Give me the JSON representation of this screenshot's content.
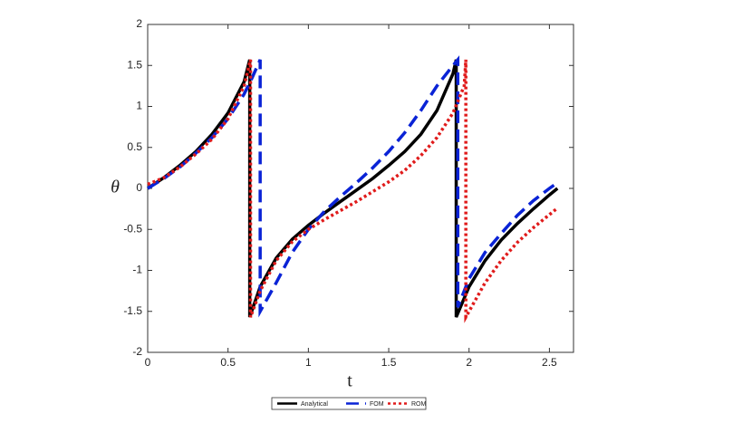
{
  "chart_data": {
    "type": "line",
    "xlabel": "t",
    "ylabel": "θ",
    "xlim": [
      0,
      2.65
    ],
    "ylim": [
      -2,
      2
    ],
    "xticks": [
      0,
      0.5,
      1,
      1.5,
      2,
      2.5
    ],
    "yticks": [
      -2,
      -1.5,
      -1,
      -0.5,
      0,
      0.5,
      1,
      1.5,
      2
    ],
    "legend": "bottom",
    "series": [
      {
        "name": "Analytical",
        "color": "#000000",
        "dash": "solid",
        "x": [
          0,
          0.1,
          0.2,
          0.3,
          0.4,
          0.5,
          0.6,
          0.635,
          0.635,
          0.7,
          0.8,
          0.9,
          1.0,
          1.1,
          1.2,
          1.3,
          1.4,
          1.5,
          1.6,
          1.7,
          1.8,
          1.9,
          1.92,
          1.92,
          2.0,
          2.1,
          2.2,
          2.3,
          2.4,
          2.5,
          2.55
        ],
        "values": [
          0,
          0.13,
          0.28,
          0.45,
          0.66,
          0.92,
          1.3,
          1.57,
          -1.57,
          -1.2,
          -0.85,
          -0.62,
          -0.45,
          -0.3,
          -0.16,
          -0.02,
          0.12,
          0.28,
          0.45,
          0.66,
          0.95,
          1.4,
          1.57,
          -1.57,
          -1.2,
          -0.88,
          -0.63,
          -0.43,
          -0.25,
          -0.08,
          0
        ]
      },
      {
        "name": "FOM",
        "color": "#0a23d6",
        "dash": "dashed",
        "x": [
          0,
          0.1,
          0.2,
          0.3,
          0.4,
          0.5,
          0.6,
          0.65,
          0.7,
          0.7,
          0.8,
          0.9,
          1.0,
          1.1,
          1.2,
          1.3,
          1.4,
          1.5,
          1.6,
          1.7,
          1.8,
          1.9,
          1.93,
          1.93,
          2.0,
          2.1,
          2.2,
          2.3,
          2.4,
          2.5,
          2.55
        ],
        "values": [
          0,
          0.12,
          0.26,
          0.43,
          0.62,
          0.85,
          1.15,
          1.35,
          1.57,
          -1.5,
          -1.15,
          -0.78,
          -0.5,
          -0.28,
          -0.1,
          0.07,
          0.25,
          0.45,
          0.68,
          0.95,
          1.25,
          1.5,
          1.57,
          -1.45,
          -1.1,
          -0.78,
          -0.55,
          -0.33,
          -0.15,
          0,
          0.07
        ]
      },
      {
        "name": "ROM",
        "color": "#e01b1b",
        "dash": "dotted",
        "x": [
          0,
          0.1,
          0.2,
          0.3,
          0.4,
          0.5,
          0.6,
          0.64,
          0.64,
          0.7,
          0.8,
          0.9,
          1.0,
          1.1,
          1.2,
          1.3,
          1.4,
          1.5,
          1.6,
          1.7,
          1.8,
          1.9,
          1.97,
          1.98,
          1.98,
          2.0,
          2.1,
          2.2,
          2.3,
          2.4,
          2.5,
          2.55
        ],
        "values": [
          0.05,
          0.13,
          0.26,
          0.42,
          0.6,
          0.85,
          1.25,
          1.57,
          -1.57,
          -1.25,
          -0.88,
          -0.65,
          -0.5,
          -0.38,
          -0.27,
          -0.16,
          -0.04,
          0.08,
          0.22,
          0.4,
          0.62,
          0.92,
          1.25,
          1.57,
          -1.57,
          -1.5,
          -1.15,
          -0.88,
          -0.66,
          -0.48,
          -0.32,
          -0.24
        ]
      }
    ]
  }
}
